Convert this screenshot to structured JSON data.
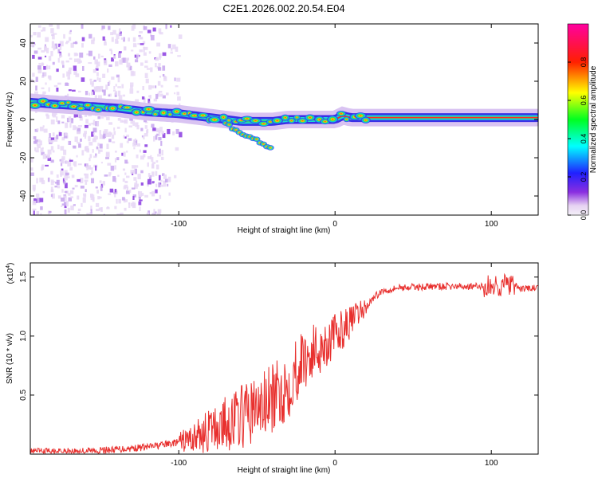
{
  "title": "C2E1.2026.002.20.54.E04",
  "chart_data": [
    {
      "type": "heatmap",
      "xlabel": "Height of straight line (km)",
      "ylabel": "Frequency (Hz)",
      "xlim": [
        -195,
        130
      ],
      "ylim": [
        -50,
        50
      ],
      "x_ticks": [
        -100,
        0,
        100
      ],
      "x_tick_labels": [
        "-100",
        "0",
        "100"
      ],
      "y_ticks": [
        -40,
        -20,
        0,
        20,
        40
      ],
      "y_tick_labels": [
        "-40",
        "-20",
        "0",
        "20",
        "40"
      ],
      "ridge": {
        "x": [
          -195,
          -180,
          -160,
          -140,
          -120,
          -100,
          -80,
          -60,
          -50,
          -40,
          -30,
          -20,
          -10,
          0,
          5,
          10,
          20,
          40,
          60,
          80,
          100,
          130
        ],
        "y": [
          9,
          8,
          7,
          6,
          4,
          3,
          1,
          -1,
          -1,
          -1,
          0,
          0,
          0,
          0,
          2,
          1,
          1,
          1,
          1,
          1,
          1,
          1
        ]
      },
      "colorbar": {
        "label": "Normalized spectral amplitude",
        "range": [
          0,
          1
        ],
        "ticks": [
          0.0,
          0.2,
          0.4,
          0.6,
          0.8
        ],
        "tick_labels": [
          "0.0",
          "0.2",
          "0.4",
          "0.6",
          "0.8"
        ]
      }
    },
    {
      "type": "line",
      "xlabel": "Height of straight line (km)",
      "ylabel": "SNR (10 * v/v)",
      "scale_label": "(x10",
      "scale_exp": "4",
      "scale_close": ")",
      "xlim": [
        -195,
        130
      ],
      "ylim": [
        0,
        1.62
      ],
      "x_ticks": [
        -100,
        0,
        100
      ],
      "x_tick_labels": [
        "-100",
        "0",
        "100"
      ],
      "y_ticks": [
        0.5,
        1.0,
        1.5
      ],
      "y_tick_labels": [
        "0.5",
        "1.0",
        "1.5"
      ],
      "series": [
        {
          "name": "SNR",
          "color": "#e8302e",
          "x": [
            -195,
            -150,
            -120,
            -100,
            -90,
            -80,
            -70,
            -60,
            -50,
            -40,
            -30,
            -25,
            -20,
            -10,
            0,
            10,
            20,
            25,
            30,
            40,
            60,
            80,
            100,
            110,
            120,
            130
          ],
          "values": [
            0.02,
            0.03,
            0.06,
            0.1,
            0.14,
            0.2,
            0.26,
            0.32,
            0.38,
            0.46,
            0.58,
            0.72,
            0.8,
            0.9,
            1.0,
            1.12,
            1.25,
            1.33,
            1.38,
            1.41,
            1.42,
            1.42,
            1.42,
            1.44,
            1.4,
            1.41
          ]
        }
      ]
    }
  ]
}
